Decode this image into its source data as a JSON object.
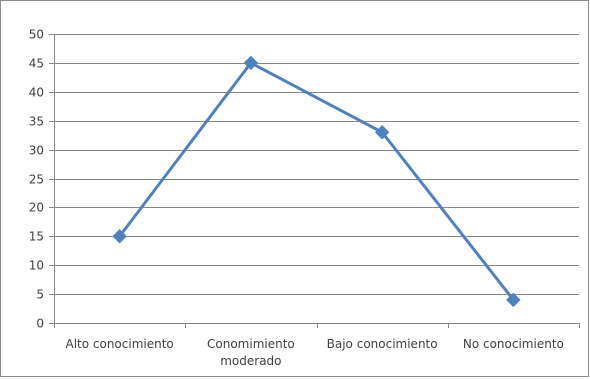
{
  "chart_data": {
    "type": "line",
    "categories": [
      [
        "Alto conocimiento"
      ],
      [
        "Conomimiento",
        "moderado"
      ],
      [
        "Bajo conocimiento"
      ],
      [
        "No conocimiento"
      ]
    ],
    "values": [
      15,
      45,
      33,
      4
    ],
    "y_ticks": [
      "0",
      "5",
      "10",
      "15",
      "20",
      "25",
      "30",
      "35",
      "40",
      "45",
      "50"
    ],
    "ylim": [
      0,
      50
    ],
    "grid": true,
    "legend": "none",
    "series_color": "#4f81bd",
    "grid_color": "#868686",
    "axis_color": "#868686"
  }
}
